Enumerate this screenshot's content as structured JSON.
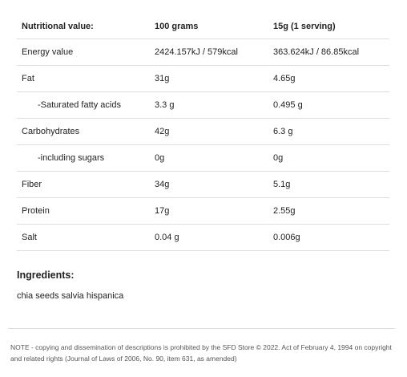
{
  "table": {
    "headers": [
      "Nutritional value:",
      "100 grams",
      "15g (1 serving)"
    ],
    "rows": [
      [
        "Energy value",
        "2424.157kJ / 579kcal",
        "363.624kJ / 86.85kcal"
      ],
      [
        "Fat",
        "31g",
        "4.65g"
      ],
      [
        "-Saturated fatty acids",
        "3.3 g",
        "0.495 g"
      ],
      [
        "Carbohydrates",
        "42g",
        "6.3 g"
      ],
      [
        "-including sugars",
        "0g",
        "0g"
      ],
      [
        "Fiber",
        "34g",
        "5.1g"
      ],
      [
        "Protein",
        "17g",
        "2.55g"
      ],
      [
        "Salt",
        "0.04 g",
        "0.006g"
      ]
    ]
  },
  "ingredients": {
    "heading": "Ingredients:",
    "text": "chia seeds salvia hispanica"
  },
  "note": "NOTE - copying and dissemination of descriptions is prohibited by the SFD Store © 2022. Act of February 4, 1994 on copyright and related rights (Journal of Laws of 2006, No. 90, item 631, as amended)"
}
